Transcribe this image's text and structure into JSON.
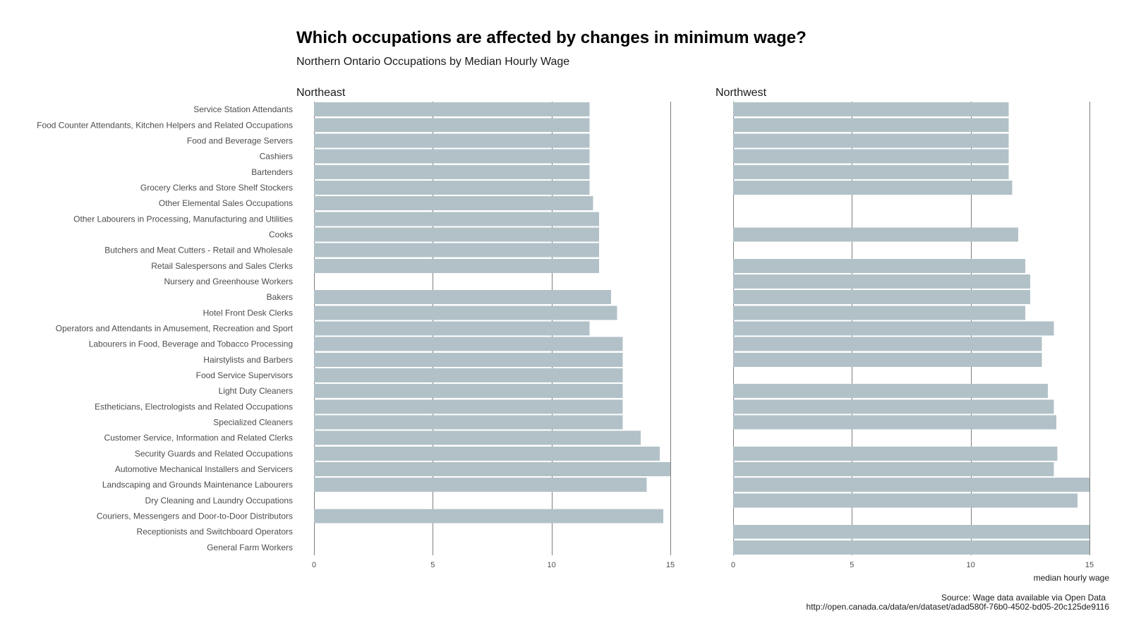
{
  "chart_data": {
    "type": "bar",
    "orientation": "horizontal",
    "title": "Which occupations are affected by changes in minimum wage?",
    "subtitle": "Northern Ontario Occupations by Median Hourly Wage",
    "xlabel": "median hourly wage",
    "ylabel": "",
    "xlim": [
      0,
      15
    ],
    "xticks": [
      0,
      5,
      10,
      15
    ],
    "grid": "vertical",
    "bar_color": "#b2c1c8",
    "caption": [
      "Source: Wage data available via Open Data",
      "http://open.canada.ca/data/en/dataset/adad580f-76b0-4502-bd05-20c125de9116"
    ],
    "categories": [
      "Service Station Attendants",
      "Food Counter Attendants, Kitchen Helpers and Related Occupations",
      "Food and Beverage Servers",
      "Cashiers",
      "Bartenders",
      "Grocery Clerks and Store Shelf Stockers",
      "Other Elemental Sales Occupations",
      "Other Labourers in Processing, Manufacturing and Utilities",
      "Cooks",
      "Butchers and Meat Cutters - Retail and Wholesale",
      "Retail Salespersons and Sales Clerks",
      "Nursery and Greenhouse Workers",
      "Bakers",
      "Hotel Front Desk Clerks",
      "Operators and Attendants in Amusement, Recreation and Sport",
      "Labourers in Food, Beverage and Tobacco Processing",
      "Hairstylists and Barbers",
      "Food Service Supervisors",
      "Light Duty Cleaners",
      "Estheticians, Electrologists and Related Occupations",
      "Specialized Cleaners",
      "Customer Service, Information and Related Clerks",
      "Security Guards and Related Occupations",
      "Automotive Mechanical Installers and Servicers",
      "Landscaping and Grounds Maintenance Labourers",
      "Dry Cleaning and Laundry Occupations",
      "Couriers, Messengers and Door-to-Door Distributors",
      "Receptionists and Switchboard Operators",
      "General Farm Workers"
    ],
    "series": [
      {
        "name": "Northeast",
        "values": [
          11.6,
          11.6,
          11.6,
          11.6,
          11.6,
          11.6,
          11.75,
          12.0,
          12.0,
          12.0,
          12.0,
          null,
          12.5,
          12.75,
          11.6,
          13.0,
          13.0,
          13.0,
          13.0,
          13.0,
          13.0,
          13.75,
          14.55,
          15.0,
          14.0,
          null,
          14.7,
          null,
          null
        ]
      },
      {
        "name": "Northwest",
        "values": [
          11.6,
          11.6,
          11.6,
          11.6,
          11.6,
          11.75,
          null,
          null,
          12.0,
          null,
          12.3,
          12.5,
          12.5,
          12.3,
          13.5,
          13.0,
          13.0,
          null,
          13.25,
          13.5,
          13.6,
          null,
          13.65,
          13.5,
          15.0,
          14.5,
          null,
          15.0,
          15.0
        ]
      }
    ]
  }
}
